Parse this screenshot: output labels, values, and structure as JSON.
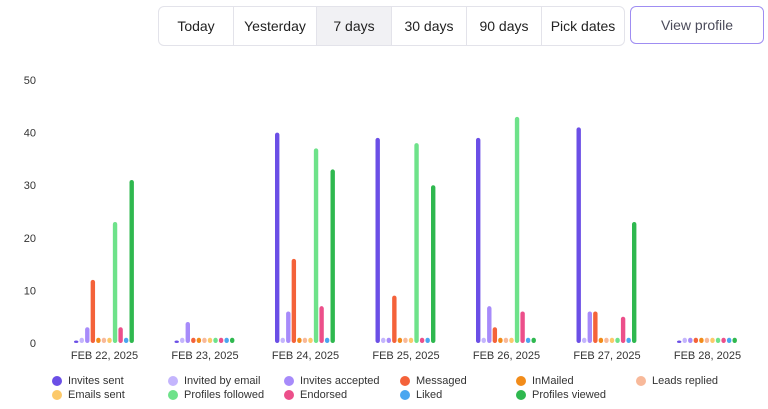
{
  "range_buttons": [
    {
      "label": "Today",
      "active": false
    },
    {
      "label": "Yesterday",
      "active": false
    },
    {
      "label": "7 days",
      "active": true
    },
    {
      "label": "30 days",
      "active": false
    },
    {
      "label": "90 days",
      "active": false
    },
    {
      "label": "Pick dates",
      "active": false
    }
  ],
  "view_profile_label": "View profile",
  "chart_data": {
    "type": "bar",
    "ylim": [
      0,
      50
    ],
    "yticks": [
      0,
      10,
      20,
      30,
      40,
      50
    ],
    "grid": false,
    "legend_position": "bottom",
    "categories": [
      "FEB 22, 2025",
      "FEB 23, 2025",
      "FEB 24, 2025",
      "FEB 25, 2025",
      "FEB 26, 2025",
      "FEB 27, 2025",
      "FEB 28, 2025"
    ],
    "series": [
      {
        "name": "Invites sent",
        "color": "#6b4fe6",
        "values": [
          0,
          0,
          40,
          39,
          39,
          41,
          0
        ]
      },
      {
        "name": "Invited by email",
        "color": "#c4b5fd",
        "values": [
          1,
          1,
          1,
          1,
          1,
          1,
          1
        ]
      },
      {
        "name": "Invites accepted",
        "color": "#a78bfa",
        "values": [
          3,
          4,
          6,
          1,
          7,
          6,
          1
        ]
      },
      {
        "name": "Messaged",
        "color": "#f4623a",
        "values": [
          12,
          1,
          16,
          9,
          3,
          6,
          1
        ]
      },
      {
        "name": "InMailed",
        "color": "#f28c1a",
        "values": [
          1,
          1,
          1,
          1,
          1,
          1,
          1
        ]
      },
      {
        "name": "Leads replied",
        "color": "#f8b99a",
        "values": [
          1,
          1,
          1,
          1,
          1,
          1,
          1
        ]
      },
      {
        "name": "Emails sent",
        "color": "#fcc96a",
        "values": [
          1,
          1,
          1,
          1,
          1,
          1,
          1
        ]
      },
      {
        "name": "Profiles followed",
        "color": "#6ee28a",
        "values": [
          23,
          1,
          37,
          38,
          43,
          1,
          1
        ]
      },
      {
        "name": "Endorsed",
        "color": "#ec4f8a",
        "values": [
          3,
          1,
          7,
          1,
          6,
          5,
          1
        ]
      },
      {
        "name": "Liked",
        "color": "#4aa6f0",
        "values": [
          1,
          1,
          1,
          1,
          1,
          1,
          1
        ]
      },
      {
        "name": "Profiles viewed",
        "color": "#2fb84f",
        "values": [
          31,
          1,
          33,
          30,
          1,
          23,
          1
        ]
      }
    ]
  }
}
